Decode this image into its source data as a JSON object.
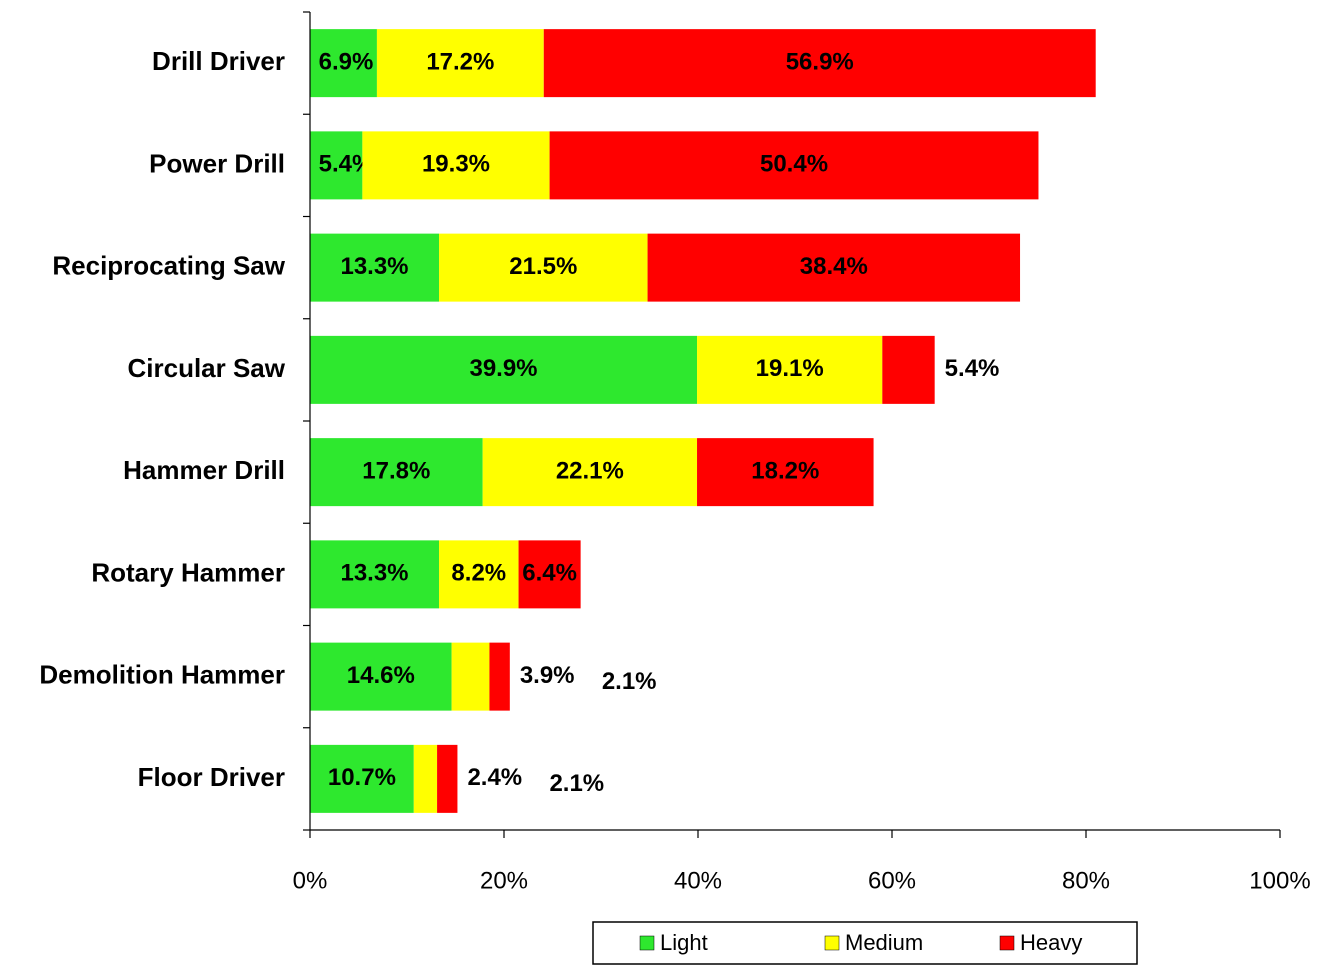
{
  "chart_data": {
    "type": "stacked-bar-horizontal",
    "categories": [
      "Drill Driver",
      "Power Drill",
      "Reciprocating Saw",
      "Circular Saw",
      "Hammer Drill",
      "Rotary Hammer",
      "Demolition Hammer",
      "Floor Driver"
    ],
    "series": [
      {
        "name": "Light",
        "color": "#2ee82e",
        "values": [
          6.9,
          5.4,
          13.3,
          39.9,
          17.8,
          13.3,
          14.6,
          10.7
        ],
        "value_labels": [
          "6.9%",
          "5.4%",
          "13.3%",
          "39.9%",
          "17.8%",
          "13.3%",
          "14.6%",
          "10.7%"
        ]
      },
      {
        "name": "Medium",
        "color": "#ffff00",
        "values": [
          17.2,
          19.3,
          21.5,
          19.1,
          22.1,
          8.2,
          3.9,
          2.4
        ],
        "value_labels": [
          "17.2%",
          "19.3%",
          "21.5%",
          "19.1%",
          "22.1%",
          "8.2%",
          "3.9%",
          "2.4%"
        ]
      },
      {
        "name": "Heavy",
        "color": "#ff0000",
        "values": [
          56.9,
          50.4,
          38.4,
          5.4,
          18.2,
          6.4,
          2.1,
          2.1
        ],
        "value_labels": [
          "56.9%",
          "50.4%",
          "38.4%",
          "5.4%",
          "18.2%",
          "6.4%",
          "2.1%",
          "2.1%"
        ]
      }
    ],
    "xlim": [
      0,
      100
    ],
    "xticks": [
      {
        "value": 0,
        "label": "0%"
      },
      {
        "value": 20,
        "label": "20%"
      },
      {
        "value": 40,
        "label": "40%"
      },
      {
        "value": 60,
        "label": "60%"
      },
      {
        "value": 80,
        "label": "80%"
      },
      {
        "value": 100,
        "label": "100%"
      }
    ],
    "legend": "bottom"
  }
}
